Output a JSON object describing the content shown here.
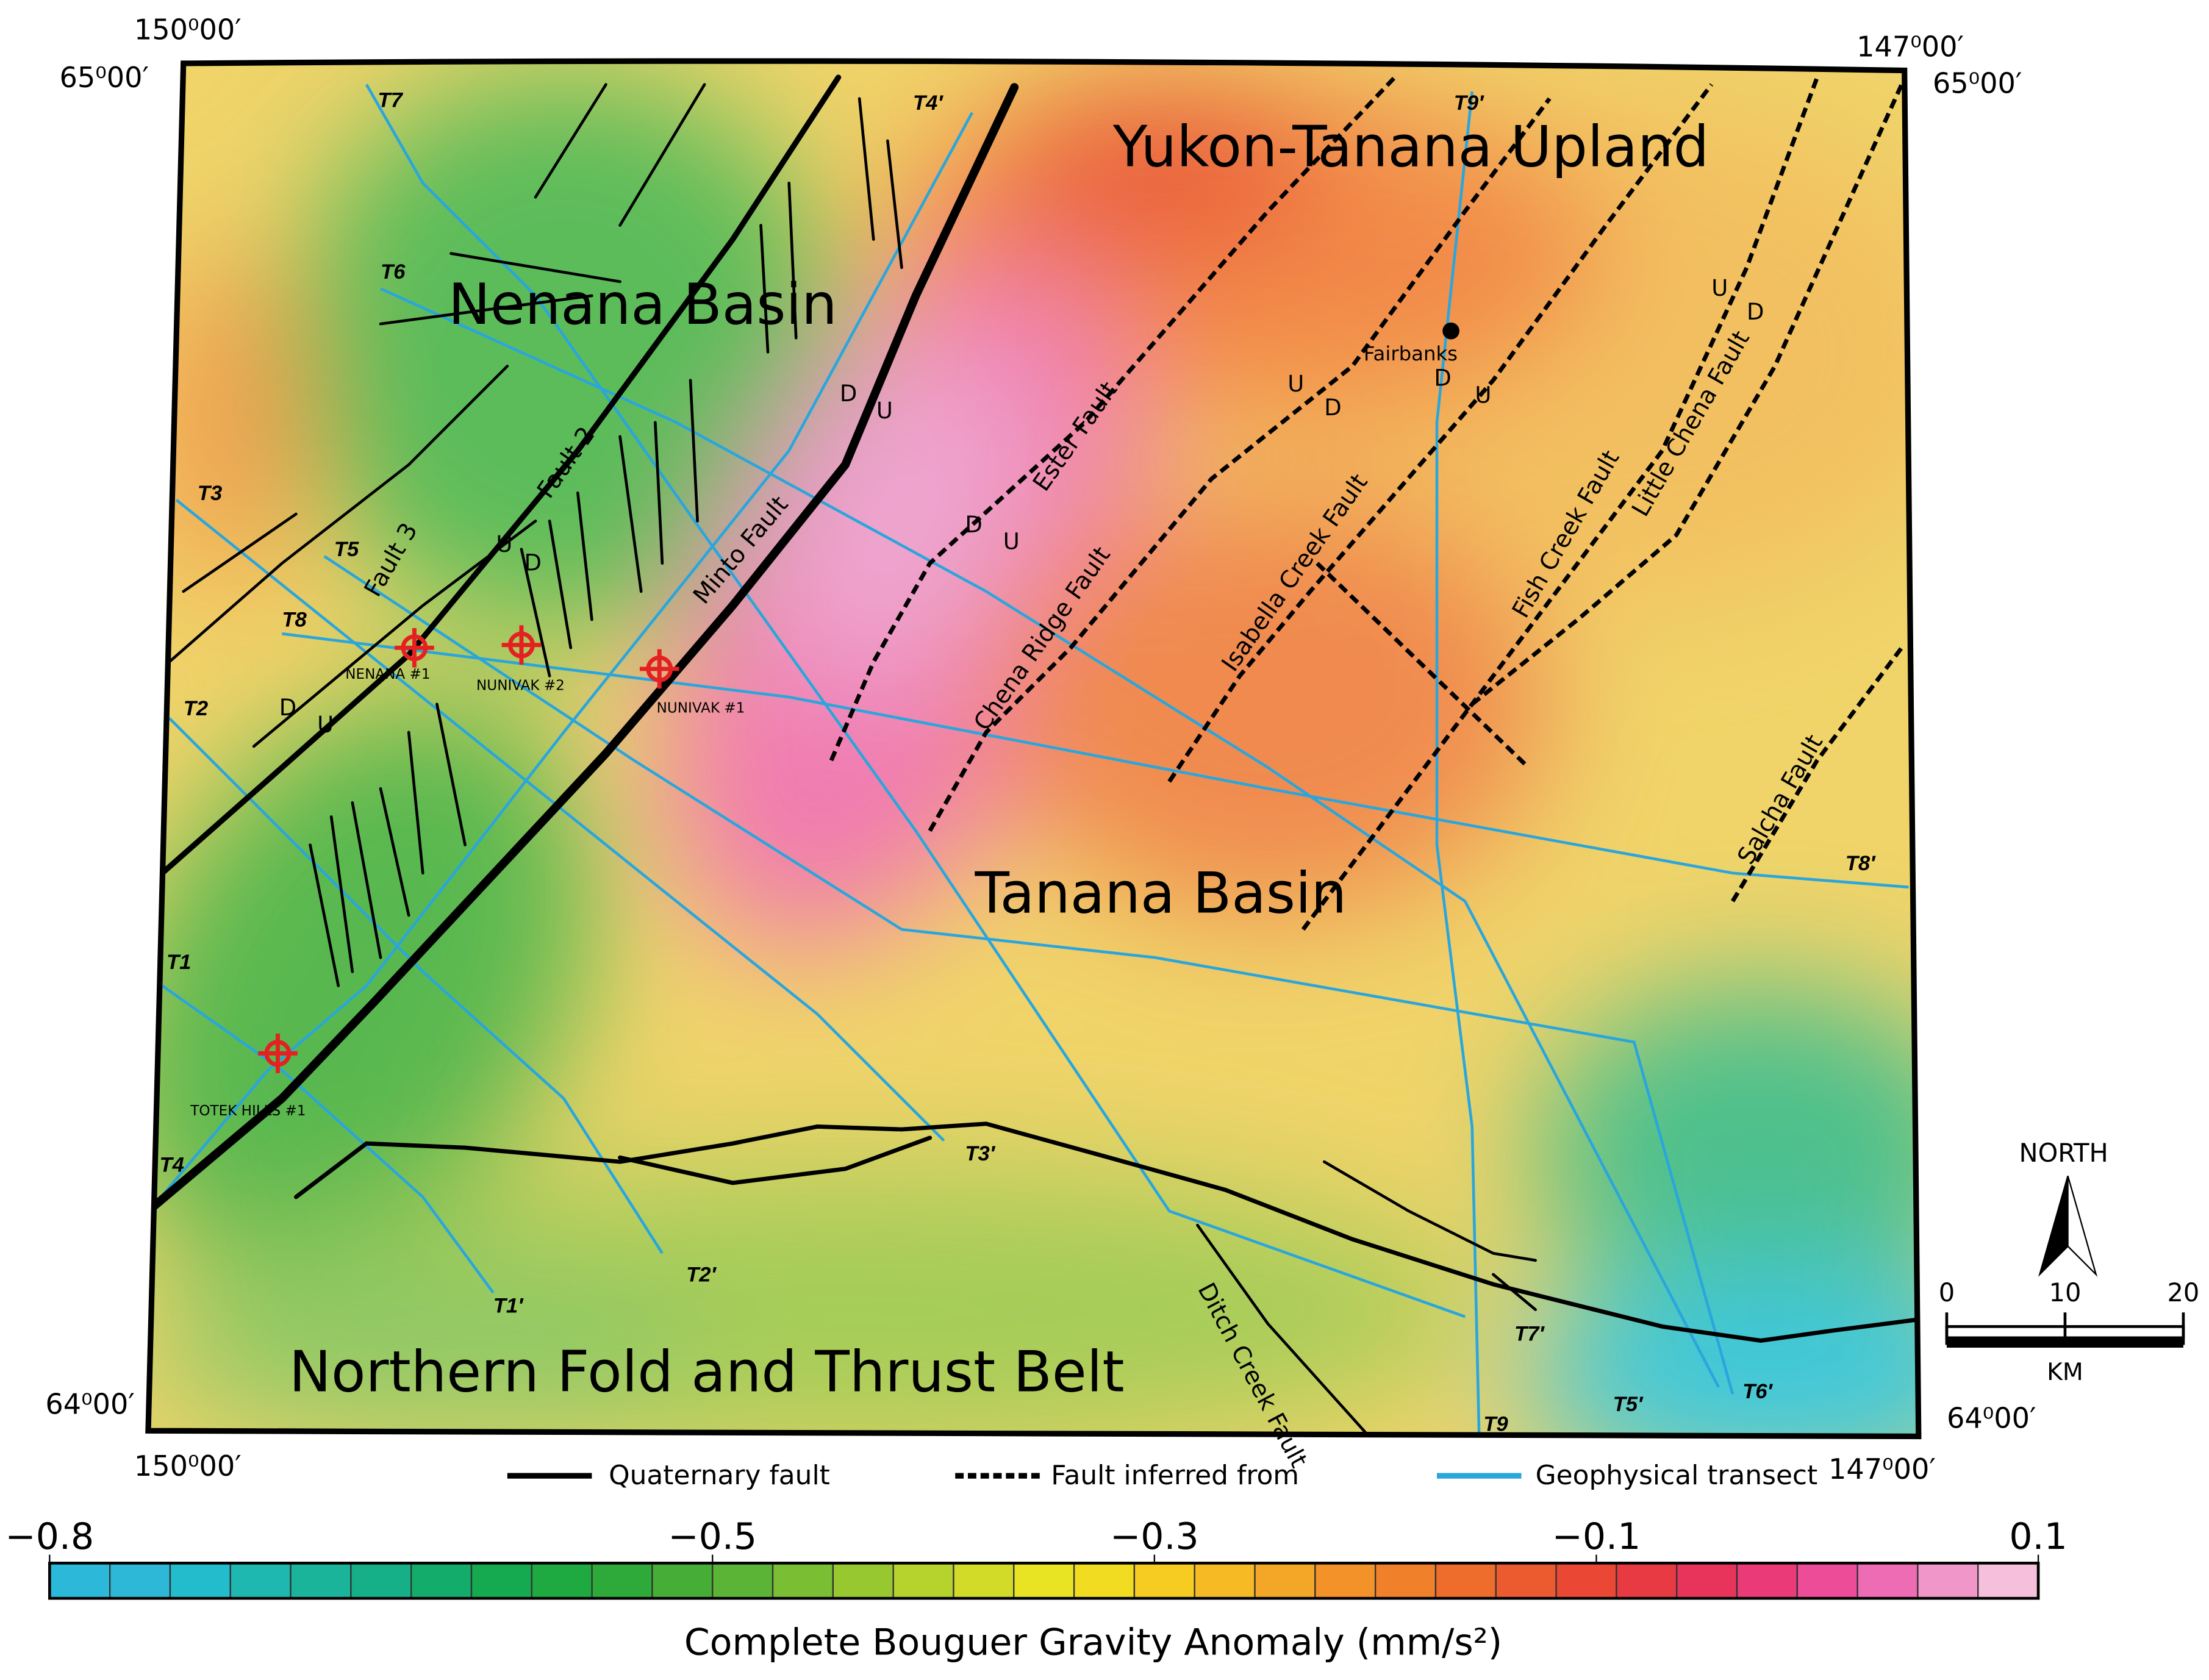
{
  "corners": [
    "150⁰00′",
    "65⁰00′",
    "147⁰00′",
    "65⁰00′",
    "64⁰00′",
    "150⁰00′",
    "64⁰00′",
    "147⁰00′"
  ],
  "regions": [
    "Yukon-Tanana Upland",
    "Nenana Basin",
    "Tanana Basin",
    "Northern Fold and Thrust Belt"
  ],
  "faults": [
    "Fault 3",
    "Fault 2",
    "Minto Fault",
    "Ester Fault",
    "Chena Ridge  Fault",
    "Isabella Creek Fault",
    "Fish Creek Fault",
    "Little Chena Fault",
    "Salcha Fault",
    "Ditch Creek Fault"
  ],
  "transects": [
    "T1",
    "T1′",
    "T2",
    "T2′",
    "T3",
    "T3′",
    "T4",
    "T4′",
    "T5",
    "T5′",
    "T6",
    "T6′",
    "T7",
    "T7′",
    "T8",
    "T8′",
    "T9",
    "T9′"
  ],
  "wells": [
    "NENANA #1",
    "NUNIVAK #2",
    "NUNIVAK #1",
    "TOTEK HILLS #1"
  ],
  "city": "Fairbanks",
  "offset_marks": [
    "D",
    "U",
    "U",
    "D",
    "D",
    "U",
    "D",
    "U",
    "U",
    "D",
    "D",
    "U",
    "U",
    "D"
  ],
  "legend": [
    "Quaternary fault",
    "Fault inferred from",
    "Geophysical transect"
  ],
  "colorbar": {
    "title": "Complete Bouguer Gravity Anomaly (mm/s²)",
    "range": [
      -0.8,
      0.1
    ],
    "ticks": [
      {
        "value": -0.8,
        "label": "−0.8"
      },
      {
        "value": -0.5,
        "label": "−0.5"
      },
      {
        "value": -0.3,
        "label": "−0.3"
      },
      {
        "value": -0.1,
        "label": "−0.1"
      },
      0.1
    ],
    "colors": [
      "#2cb8d8",
      "#2cb8d6",
      "#22bccc",
      "#1eb8b0",
      "#1ab49a",
      "#16b088",
      "#14ac6a",
      "#16aa50",
      "#1eaa40",
      "#2eaa3a",
      "#46ae36",
      "#5cb436",
      "#7abe34",
      "#98c830",
      "#b6d22c",
      "#d2dc28",
      "#e8e424",
      "#f2dc22",
      "#f6cc22",
      "#f6ba24",
      "#f4a626",
      "#f29228",
      "#f0802a",
      "#ee6c2c",
      "#ec5a30",
      "#ea4834",
      "#e83a42",
      "#e8345a",
      "#ea3a78",
      "#ec4c98",
      "#ee6cb4",
      "#f096c8",
      "#f6c0dc"
    ]
  },
  "north": "NORTH",
  "scale_bar": {
    "ticks": [
      0,
      10,
      20
    ],
    "unit": "KM"
  }
}
